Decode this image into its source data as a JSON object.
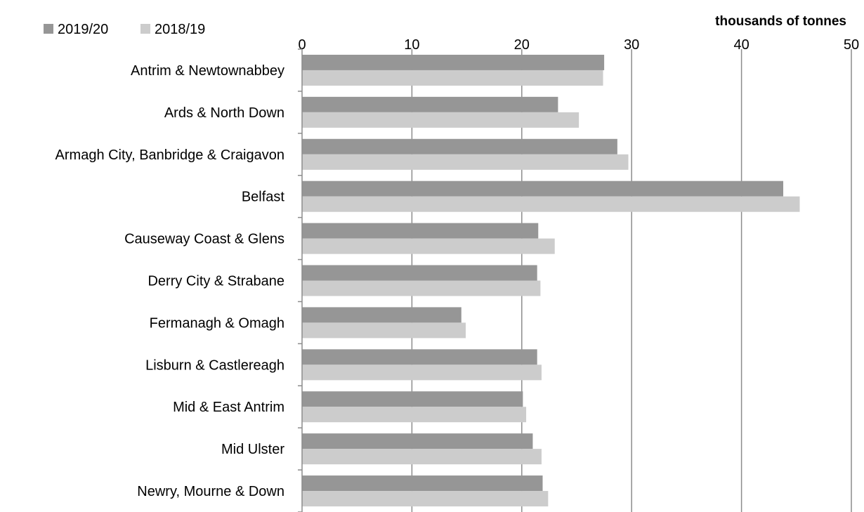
{
  "chart_data": {
    "type": "bar",
    "orientation": "horizontal",
    "title": "",
    "unit_label": "thousands of tonnes",
    "xlim": [
      0,
      50
    ],
    "x_ticks": [
      0,
      10,
      20,
      30,
      40,
      50
    ],
    "x_axis_position": "top",
    "grid": true,
    "legend_position": "top-left",
    "categories": [
      "Antrim & Newtownabbey",
      "Ards & North Down",
      "Armagh City, Banbridge & Craigavon",
      "Belfast",
      "Causeway Coast & Glens",
      "Derry City & Strabane",
      "Fermanagh & Omagh",
      "Lisburn & Castlereagh",
      "Mid & East Antrim",
      "Mid Ulster",
      "Newry, Mourne & Down"
    ],
    "series": [
      {
        "name": "2019/20",
        "color": "#969696",
        "values": [
          27.5,
          23.3,
          28.7,
          43.8,
          21.5,
          21.4,
          14.5,
          21.4,
          20.1,
          21.0,
          21.9
        ]
      },
      {
        "name": "2018/19",
        "color": "#cccccc",
        "values": [
          27.4,
          25.2,
          29.7,
          45.3,
          23.0,
          21.7,
          14.9,
          21.8,
          20.4,
          21.8,
          22.4
        ]
      }
    ]
  }
}
